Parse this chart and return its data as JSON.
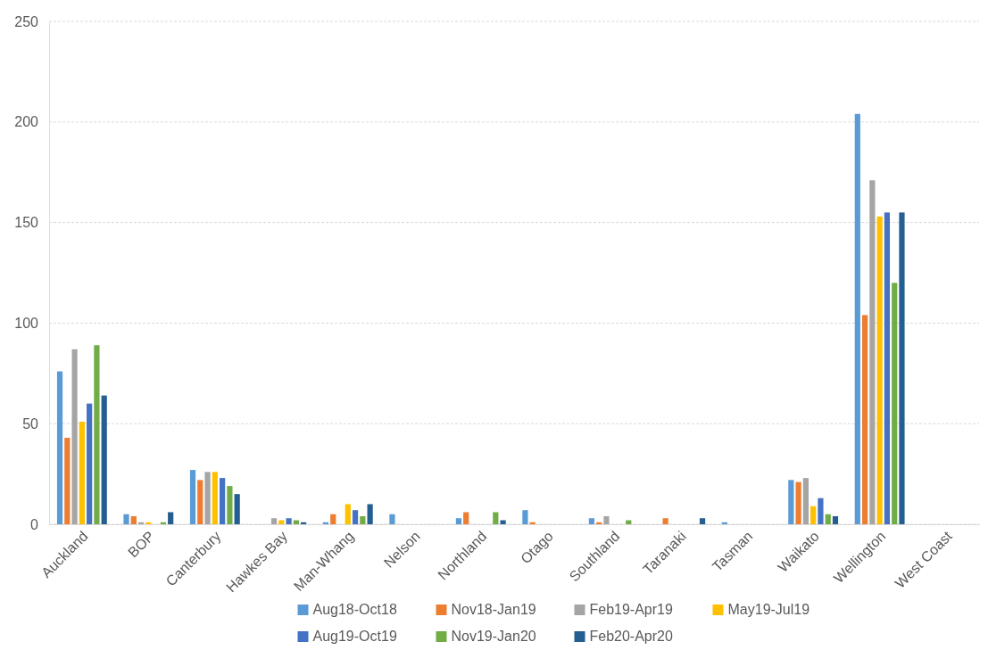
{
  "chart_data": {
    "type": "bar",
    "categories": [
      "Auckland",
      "BOP",
      "Canterbury",
      "Hawkes Bay",
      "Man-Whang",
      "Nelson",
      "Northland",
      "Otago",
      "Southland",
      "Taranaki",
      "Tasman",
      "Waikato",
      "Wellington",
      "West Coast"
    ],
    "series": [
      {
        "name": "Aug18-Oct18",
        "color": "#5b9bd5",
        "values": [
          76,
          5,
          27,
          0,
          1,
          5,
          3,
          7,
          3,
          0,
          1,
          22,
          204,
          0
        ]
      },
      {
        "name": "Nov18-Jan19",
        "color": "#ed7d31",
        "values": [
          43,
          4,
          22,
          0,
          5,
          0,
          6,
          1,
          1,
          3,
          0,
          21,
          104,
          0
        ]
      },
      {
        "name": "Feb19-Apr19",
        "color": "#a5a5a5",
        "values": [
          87,
          1,
          26,
          3,
          0,
          0,
          0,
          0,
          4,
          0,
          0,
          23,
          171,
          0
        ]
      },
      {
        "name": "May19-Jul19",
        "color": "#ffc000",
        "values": [
          51,
          1,
          26,
          2,
          10,
          0,
          0,
          0,
          0,
          0,
          0,
          9,
          153,
          0
        ]
      },
      {
        "name": "Aug19-Oct19",
        "color": "#4472c4",
        "values": [
          60,
          0,
          23,
          3,
          7,
          0,
          0,
          0,
          0,
          0,
          0,
          13,
          155,
          0
        ]
      },
      {
        "name": "Nov19-Jan20",
        "color": "#70ad47",
        "values": [
          89,
          1,
          19,
          2,
          4,
          0,
          6,
          0,
          2,
          0,
          0,
          5,
          120,
          0
        ]
      },
      {
        "name": "Feb20-Apr20",
        "color": "#255e91",
        "values": [
          64,
          6,
          15,
          1,
          10,
          0,
          2,
          0,
          0,
          3,
          0,
          4,
          155,
          0
        ]
      }
    ],
    "ylim": [
      0,
      250
    ],
    "yticks": [
      0,
      50,
      100,
      150,
      200,
      250
    ],
    "grid": "y",
    "legend": "bottom"
  }
}
